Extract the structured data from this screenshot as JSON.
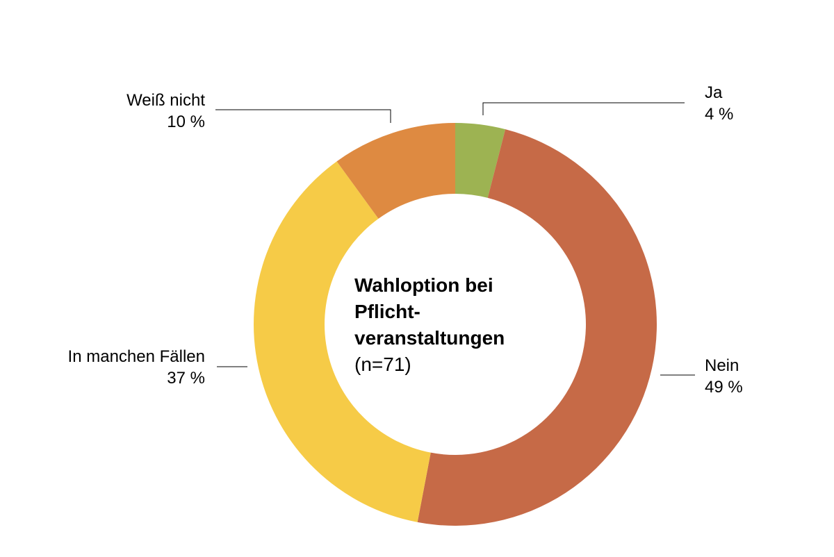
{
  "chart_data": {
    "type": "pie",
    "variant": "donut",
    "title": "Wahloption bei Pflicht-veranstaltungen",
    "title_lines": [
      "Wahloption bei",
      "Pflicht-",
      "veranstaltungen"
    ],
    "subtitle": "(n=71)",
    "slices": [
      {
        "label": "Ja",
        "value": 4,
        "value_label": "4 %",
        "color": "#9db352"
      },
      {
        "label": "Nein",
        "value": 49,
        "value_label": "49 %",
        "color": "#c66a47"
      },
      {
        "label": "In manchen Fällen",
        "value": 37,
        "value_label": "37 %",
        "color": "#f6cb47"
      },
      {
        "label": "Weiß nicht",
        "value": 10,
        "value_label": "10 %",
        "color": "#de8a41"
      }
    ]
  }
}
